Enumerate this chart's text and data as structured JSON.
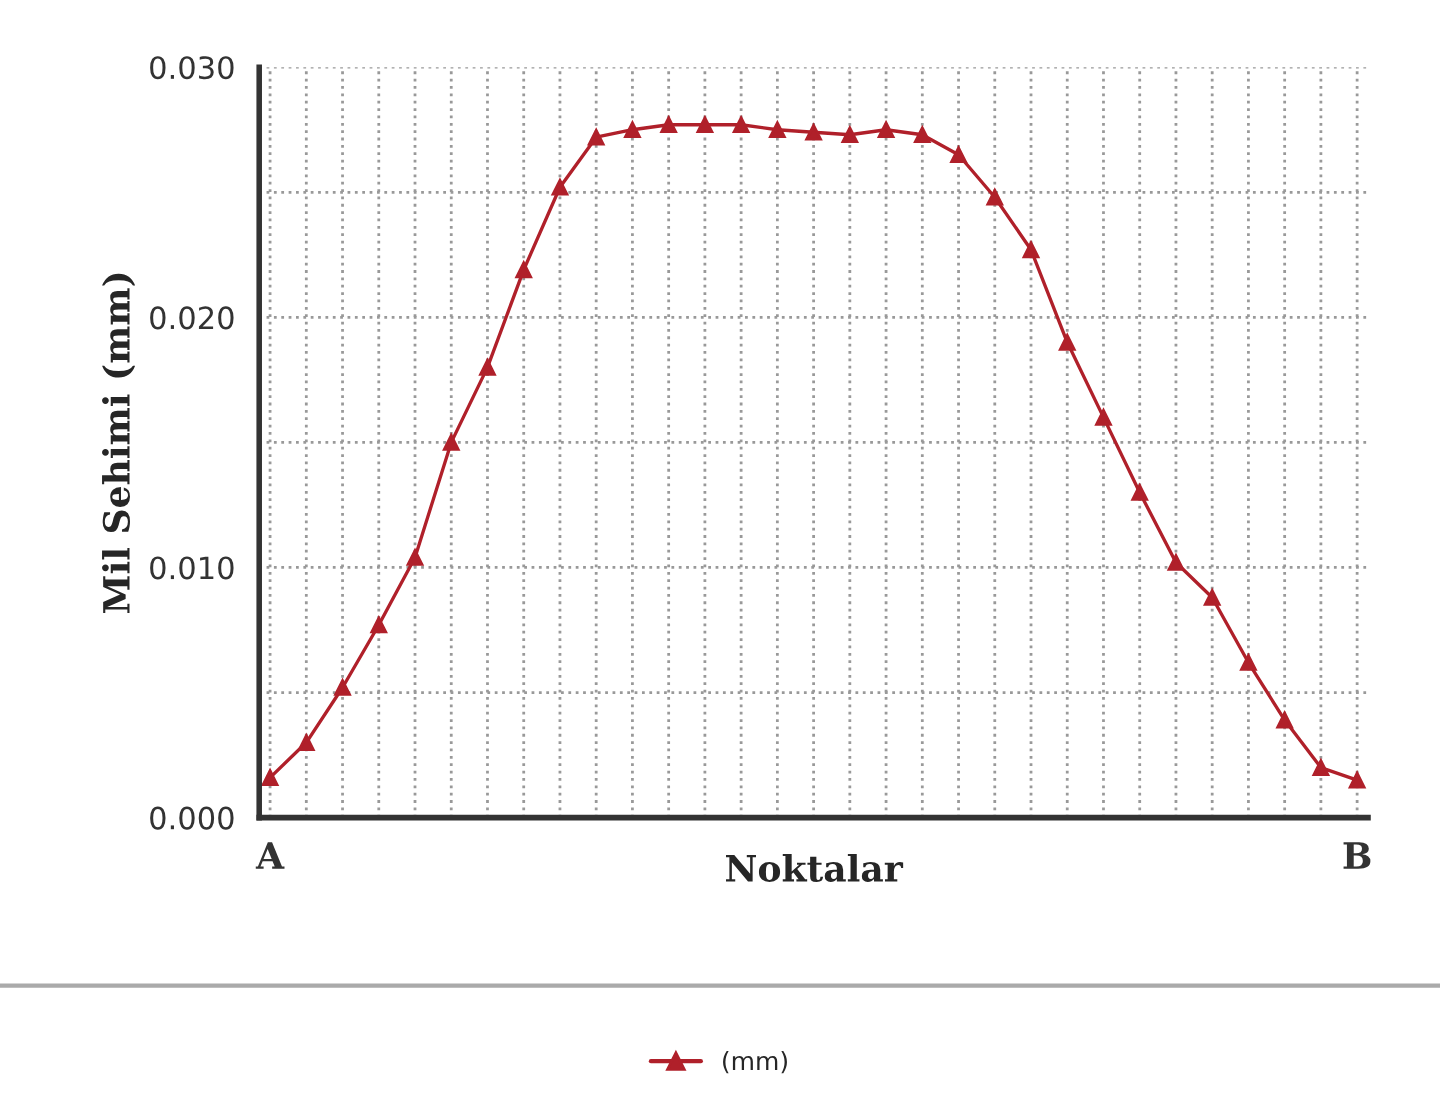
{
  "chart_data": {
    "type": "line",
    "xlabel": "Noktalar",
    "ylabel": "Mil Sehimi (mm)",
    "categories": [
      "A",
      null,
      null,
      null,
      null,
      null,
      null,
      null,
      null,
      null,
      null,
      null,
      null,
      null,
      null,
      null,
      null,
      null,
      null,
      null,
      null,
      null,
      null,
      null,
      null,
      null,
      null,
      null,
      null,
      null,
      "B"
    ],
    "series": [
      {
        "name": "(mm)",
        "color": "#b0202a",
        "values": [
          0.0016,
          0.003,
          0.0052,
          0.0077,
          0.0104,
          0.015,
          0.018,
          0.0219,
          0.0252,
          0.0272,
          0.0275,
          0.0277,
          0.0277,
          0.0277,
          0.0275,
          0.0274,
          0.0273,
          0.0275,
          0.0273,
          0.0265,
          0.0248,
          0.0227,
          0.019,
          0.016,
          0.013,
          0.0102,
          0.0088,
          0.0062,
          0.0039,
          0.002,
          0.0015
        ]
      }
    ],
    "ylim": [
      0,
      0.03
    ],
    "yticks": [
      {
        "value": 0,
        "label": "0.000"
      },
      {
        "value": 0.005,
        "label": null
      },
      {
        "value": 0.01,
        "label": "0.010"
      },
      {
        "value": 0.015,
        "label": null
      },
      {
        "value": 0.02,
        "label": "0.020"
      },
      {
        "value": 0.025,
        "label": null
      },
      {
        "value": 0.03,
        "label": "0.030"
      }
    ],
    "grid": true,
    "legend": "bottom",
    "marker": "triangle",
    "line_style": "solid"
  }
}
